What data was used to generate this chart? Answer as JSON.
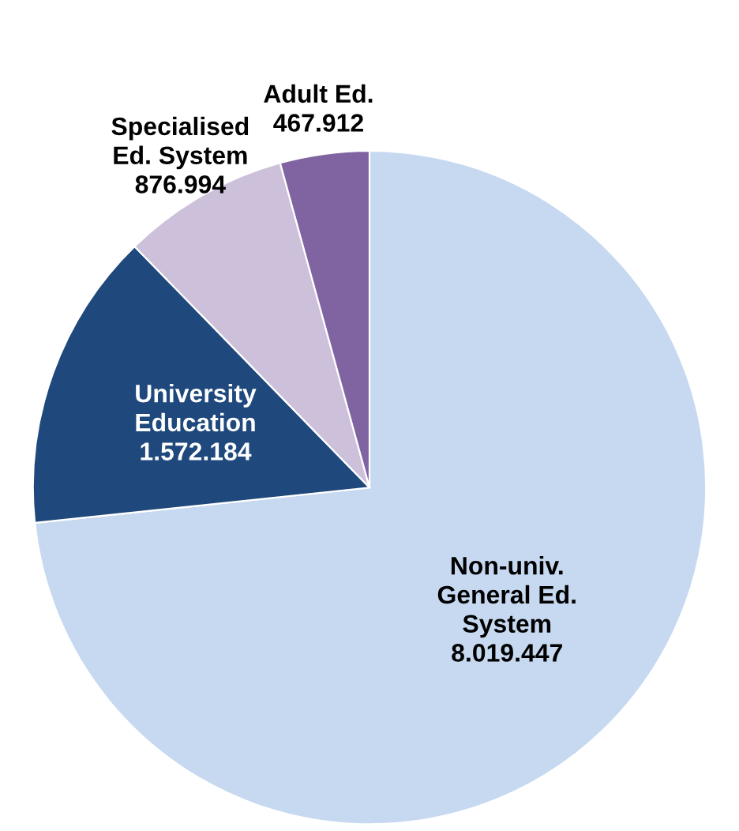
{
  "chart_data": {
    "type": "pie",
    "categories": [
      "Non-univ.\nGeneral Ed.\nSystem",
      "University\nEducation",
      "Specialised\nEd. System",
      "Adult Ed."
    ],
    "values": [
      8019447,
      1572184,
      876994,
      467912
    ],
    "value_labels": [
      "8.019.447",
      "1.572.184",
      "876.994",
      "467.912"
    ],
    "colors": [
      "#c6d9f1",
      "#1f497d",
      "#ccc0da",
      "#8064a2"
    ],
    "legend": false
  }
}
